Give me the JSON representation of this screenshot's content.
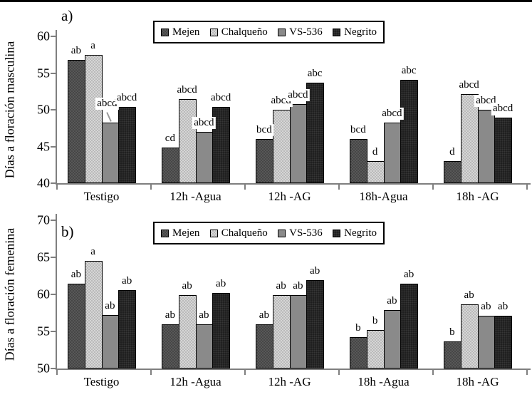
{
  "figure": {
    "background": "#ffffff",
    "axis_color": "#7f7f7f",
    "top_border_color": "#000000"
  },
  "chart_data": [
    {
      "type": "bar",
      "panel_label": "a)",
      "ylabel": "Días a floración masculina",
      "xlabel": "",
      "ylim": [
        40,
        60
      ],
      "yticks": [
        40,
        45,
        50,
        55,
        60
      ],
      "grid": false,
      "legend_position": "top-center",
      "categories": [
        "Testigo",
        "12h -Agua",
        "12h -AG",
        "18h-Agua",
        "18h -AG"
      ],
      "series": [
        {
          "name": "Mejen",
          "fill": "#585858",
          "texture": "checker-dark",
          "values": [
            56.8,
            44.9,
            46.0,
            46.0,
            43.0
          ],
          "sig_labels": [
            "ab",
            "cd",
            "bcd",
            "bcd",
            "d"
          ]
        },
        {
          "name": "Chalqueño",
          "fill": "#d6d6d6",
          "texture": "checker-light",
          "values": [
            57.5,
            51.5,
            50.0,
            43.0,
            52.1
          ],
          "sig_labels": [
            "a",
            "abcd",
            "abcd",
            "d",
            "abcd"
          ]
        },
        {
          "name": "VS-536",
          "fill": "#8a8a8a",
          "texture": "solid",
          "values": [
            48.3,
            47.0,
            50.8,
            48.3,
            50.0
          ],
          "sig_labels": [
            "abcd",
            "abcd",
            "abcd",
            "abcd",
            "abcd"
          ]
        },
        {
          "name": "Negrito",
          "fill": "#1f1f1f",
          "texture": "dots-black",
          "values": [
            50.4,
            50.4,
            53.7,
            54.1,
            48.9
          ],
          "sig_labels": [
            "abcd",
            "abcd",
            "abc",
            "abc",
            "abcd"
          ]
        }
      ],
      "callout": {
        "series_index": 2,
        "category_index": 0
      }
    },
    {
      "type": "bar",
      "panel_label": "b)",
      "ylabel": "Días a floración femenina",
      "xlabel": "",
      "ylim": [
        50,
        70
      ],
      "yticks": [
        50,
        55,
        60,
        65,
        70
      ],
      "grid": false,
      "legend_position": "top-center",
      "categories": [
        "Testigo",
        "12h -Agua",
        "12h -AG",
        "18h -Agua",
        "18h -AG"
      ],
      "series": [
        {
          "name": "Mejen",
          "fill": "#585858",
          "texture": "checker-dark",
          "values": [
            61.4,
            56.0,
            56.0,
            54.2,
            53.7
          ],
          "sig_labels": [
            "ab",
            "ab",
            "ab",
            "b",
            "b"
          ]
        },
        {
          "name": "Chalqueño",
          "fill": "#d6d6d6",
          "texture": "checker-light",
          "values": [
            64.5,
            59.9,
            59.9,
            55.2,
            58.7
          ],
          "sig_labels": [
            "a",
            "ab",
            "ab",
            "b",
            "ab"
          ]
        },
        {
          "name": "VS-536",
          "fill": "#8a8a8a",
          "texture": "solid",
          "values": [
            57.2,
            56.0,
            59.9,
            57.9,
            57.1
          ],
          "sig_labels": [
            "ab",
            "ab",
            "ab",
            "ab",
            "ab"
          ]
        },
        {
          "name": "Negrito",
          "fill": "#1f1f1f",
          "texture": "dots-black",
          "values": [
            60.6,
            60.2,
            61.9,
            61.4,
            57.1
          ],
          "sig_labels": [
            "ab",
            "ab",
            "ab",
            "ab",
            "ab"
          ]
        }
      ]
    }
  ]
}
